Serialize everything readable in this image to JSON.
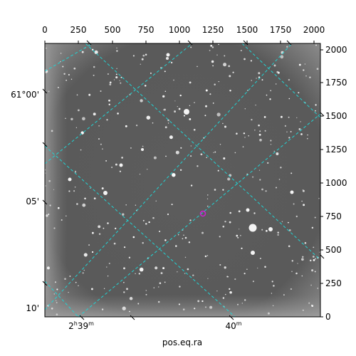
{
  "plot": {
    "top_ticks": [
      "0",
      "250",
      "500",
      "750",
      "1000",
      "1250",
      "1500",
      "1750",
      "2000"
    ],
    "right_ticks": [
      "0",
      "250",
      "500",
      "750",
      "1000",
      "1250",
      "1500",
      "1750",
      "2000"
    ],
    "left_ticks": [
      "61°00'",
      "05'",
      "10'"
    ],
    "bottom_ticks": [
      {
        "main": "2",
        "unit1": "h",
        "num2": "39",
        "unit2": "m"
      },
      {
        "main": "40",
        "unit1": "m"
      }
    ],
    "xlabel": "pos.eq.ra"
  },
  "colors": {
    "grid": "#22d4d4",
    "marker": "#d21ed2",
    "sky": "#5e5e5e",
    "frame": "#000000"
  }
}
